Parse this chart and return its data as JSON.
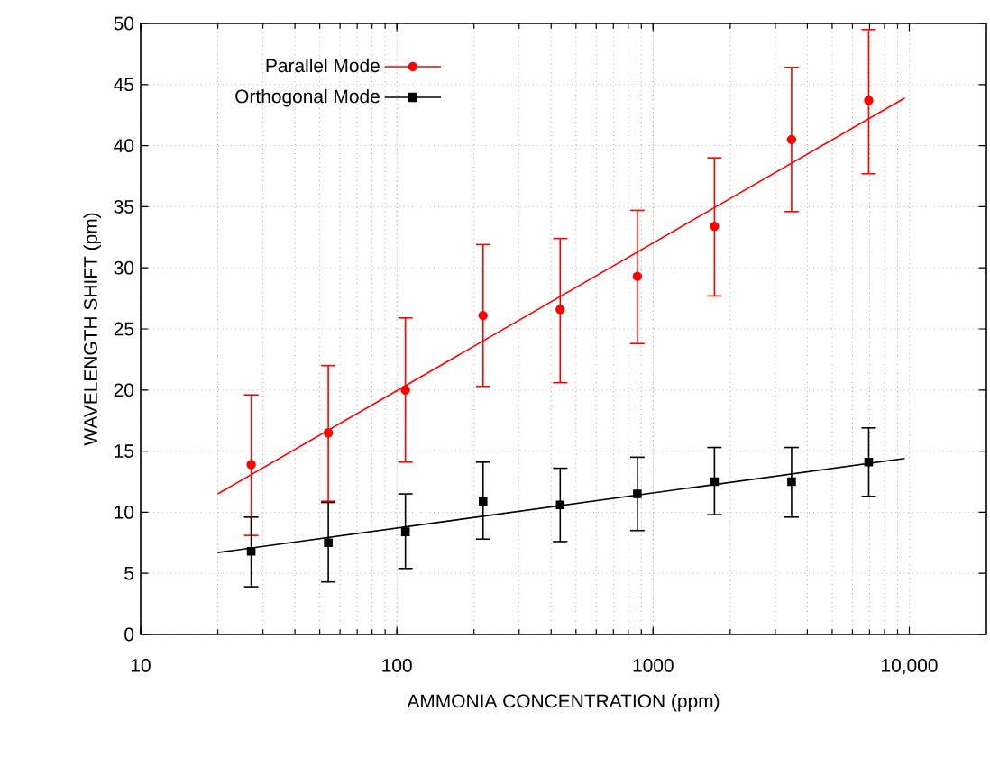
{
  "chart_data": {
    "type": "scatter",
    "xlabel": "AMMONIA CONCENTRATION (ppm)",
    "ylabel": "WAVELENGTH SHIFT (pm)",
    "log": "x",
    "grid": true,
    "legend": "top left",
    "xlim": [
      10,
      20000
    ],
    "ylim": [
      0,
      50
    ],
    "xticks": [
      10,
      100,
      1000,
      {
        "value": 10000,
        "label": "10,000"
      }
    ],
    "yticks": [
      0,
      5,
      10,
      15,
      20,
      25,
      30,
      35,
      40,
      45,
      50
    ],
    "series": [
      {
        "name": "Parallel Mode",
        "color": "#ff0000",
        "marker": "circle",
        "x": [
          27,
          54,
          108,
          217,
          434,
          868,
          1736,
          3472,
          6944
        ],
        "values": [
          13.9,
          16.5,
          20.0,
          26.1,
          26.6,
          29.3,
          33.4,
          40.5,
          43.7
        ],
        "errors": [
          [
            8.1,
            19.6
          ],
          [
            10.9,
            22.0
          ],
          [
            14.1,
            25.9
          ],
          [
            20.3,
            31.9
          ],
          [
            20.6,
            32.4
          ],
          [
            23.8,
            34.7
          ],
          [
            27.7,
            39.0
          ],
          [
            34.6,
            46.4
          ],
          [
            37.7,
            49.5
          ]
        ]
      },
      {
        "name": "Orthogonal Mode",
        "color": "#000000",
        "marker": "square",
        "x": [
          27,
          54,
          108,
          217,
          434,
          868,
          1736,
          3472,
          6944
        ],
        "values": [
          6.8,
          7.5,
          8.4,
          10.9,
          10.6,
          11.5,
          12.5,
          12.5,
          14.1
        ],
        "errors": [
          [
            3.9,
            9.6
          ],
          [
            4.3,
            10.8
          ],
          [
            5.4,
            11.5
          ],
          [
            7.8,
            14.1
          ],
          [
            7.6,
            13.6
          ],
          [
            8.5,
            14.5
          ],
          [
            9.8,
            15.3
          ],
          [
            9.6,
            15.3
          ],
          [
            11.3,
            16.9
          ]
        ]
      },
      {
        "type": "line",
        "color": "#ff0000",
        "x": [
          20,
          9600
        ],
        "values": [
          11.5,
          43.9
        ]
      },
      {
        "type": "line",
        "color": "#000000",
        "x": [
          20,
          9600
        ],
        "values": [
          6.7,
          14.4
        ]
      }
    ]
  }
}
